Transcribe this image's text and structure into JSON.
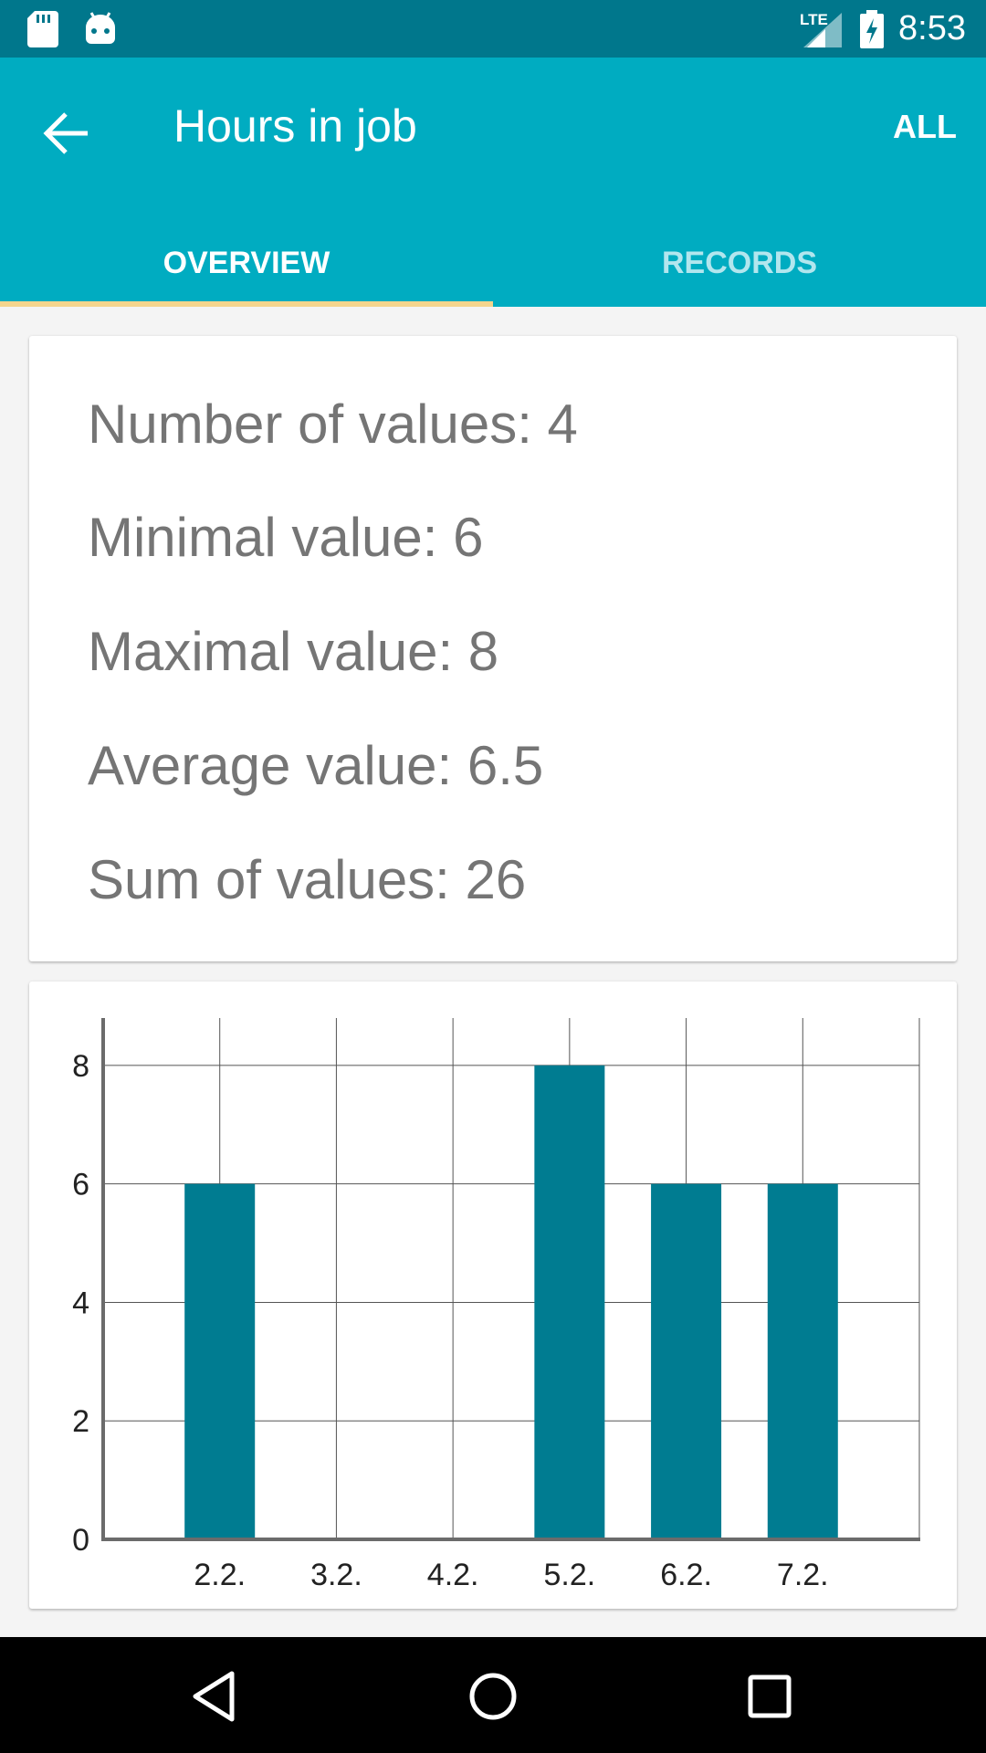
{
  "status_bar": {
    "time": "8:53",
    "network": "LTE",
    "icons": [
      "sd-card-icon",
      "android-icon",
      "lte-signal-icon",
      "battery-charging-icon"
    ]
  },
  "app_bar": {
    "title": "Hours in job",
    "action_label": "ALL",
    "back_icon": "arrow-back-icon",
    "background_color": "#00acc1"
  },
  "tabs": [
    {
      "label": "OVERVIEW",
      "selected": true
    },
    {
      "label": "RECORDS",
      "selected": false
    }
  ],
  "stats": {
    "count": "Number of values: 4",
    "min": "Minimal value: 6",
    "max": "Maximal value: 8",
    "average": "Average value: 6.5",
    "sum": "Sum of values: 26"
  },
  "chart_data": {
    "type": "bar",
    "categories": [
      "2.2.",
      "3.2.",
      "4.2.",
      "5.2.",
      "6.2.",
      "7.2."
    ],
    "values": [
      6,
      0,
      0,
      8,
      6,
      6
    ],
    "yticks": [
      "0",
      "2",
      "4",
      "6",
      "8"
    ],
    "ylim": [
      0,
      8.8
    ],
    "grid": true,
    "bar_color": "#007c91"
  },
  "nav_bar": {
    "icons": [
      "back-triangle-icon",
      "home-circle-icon",
      "recents-square-icon"
    ]
  }
}
